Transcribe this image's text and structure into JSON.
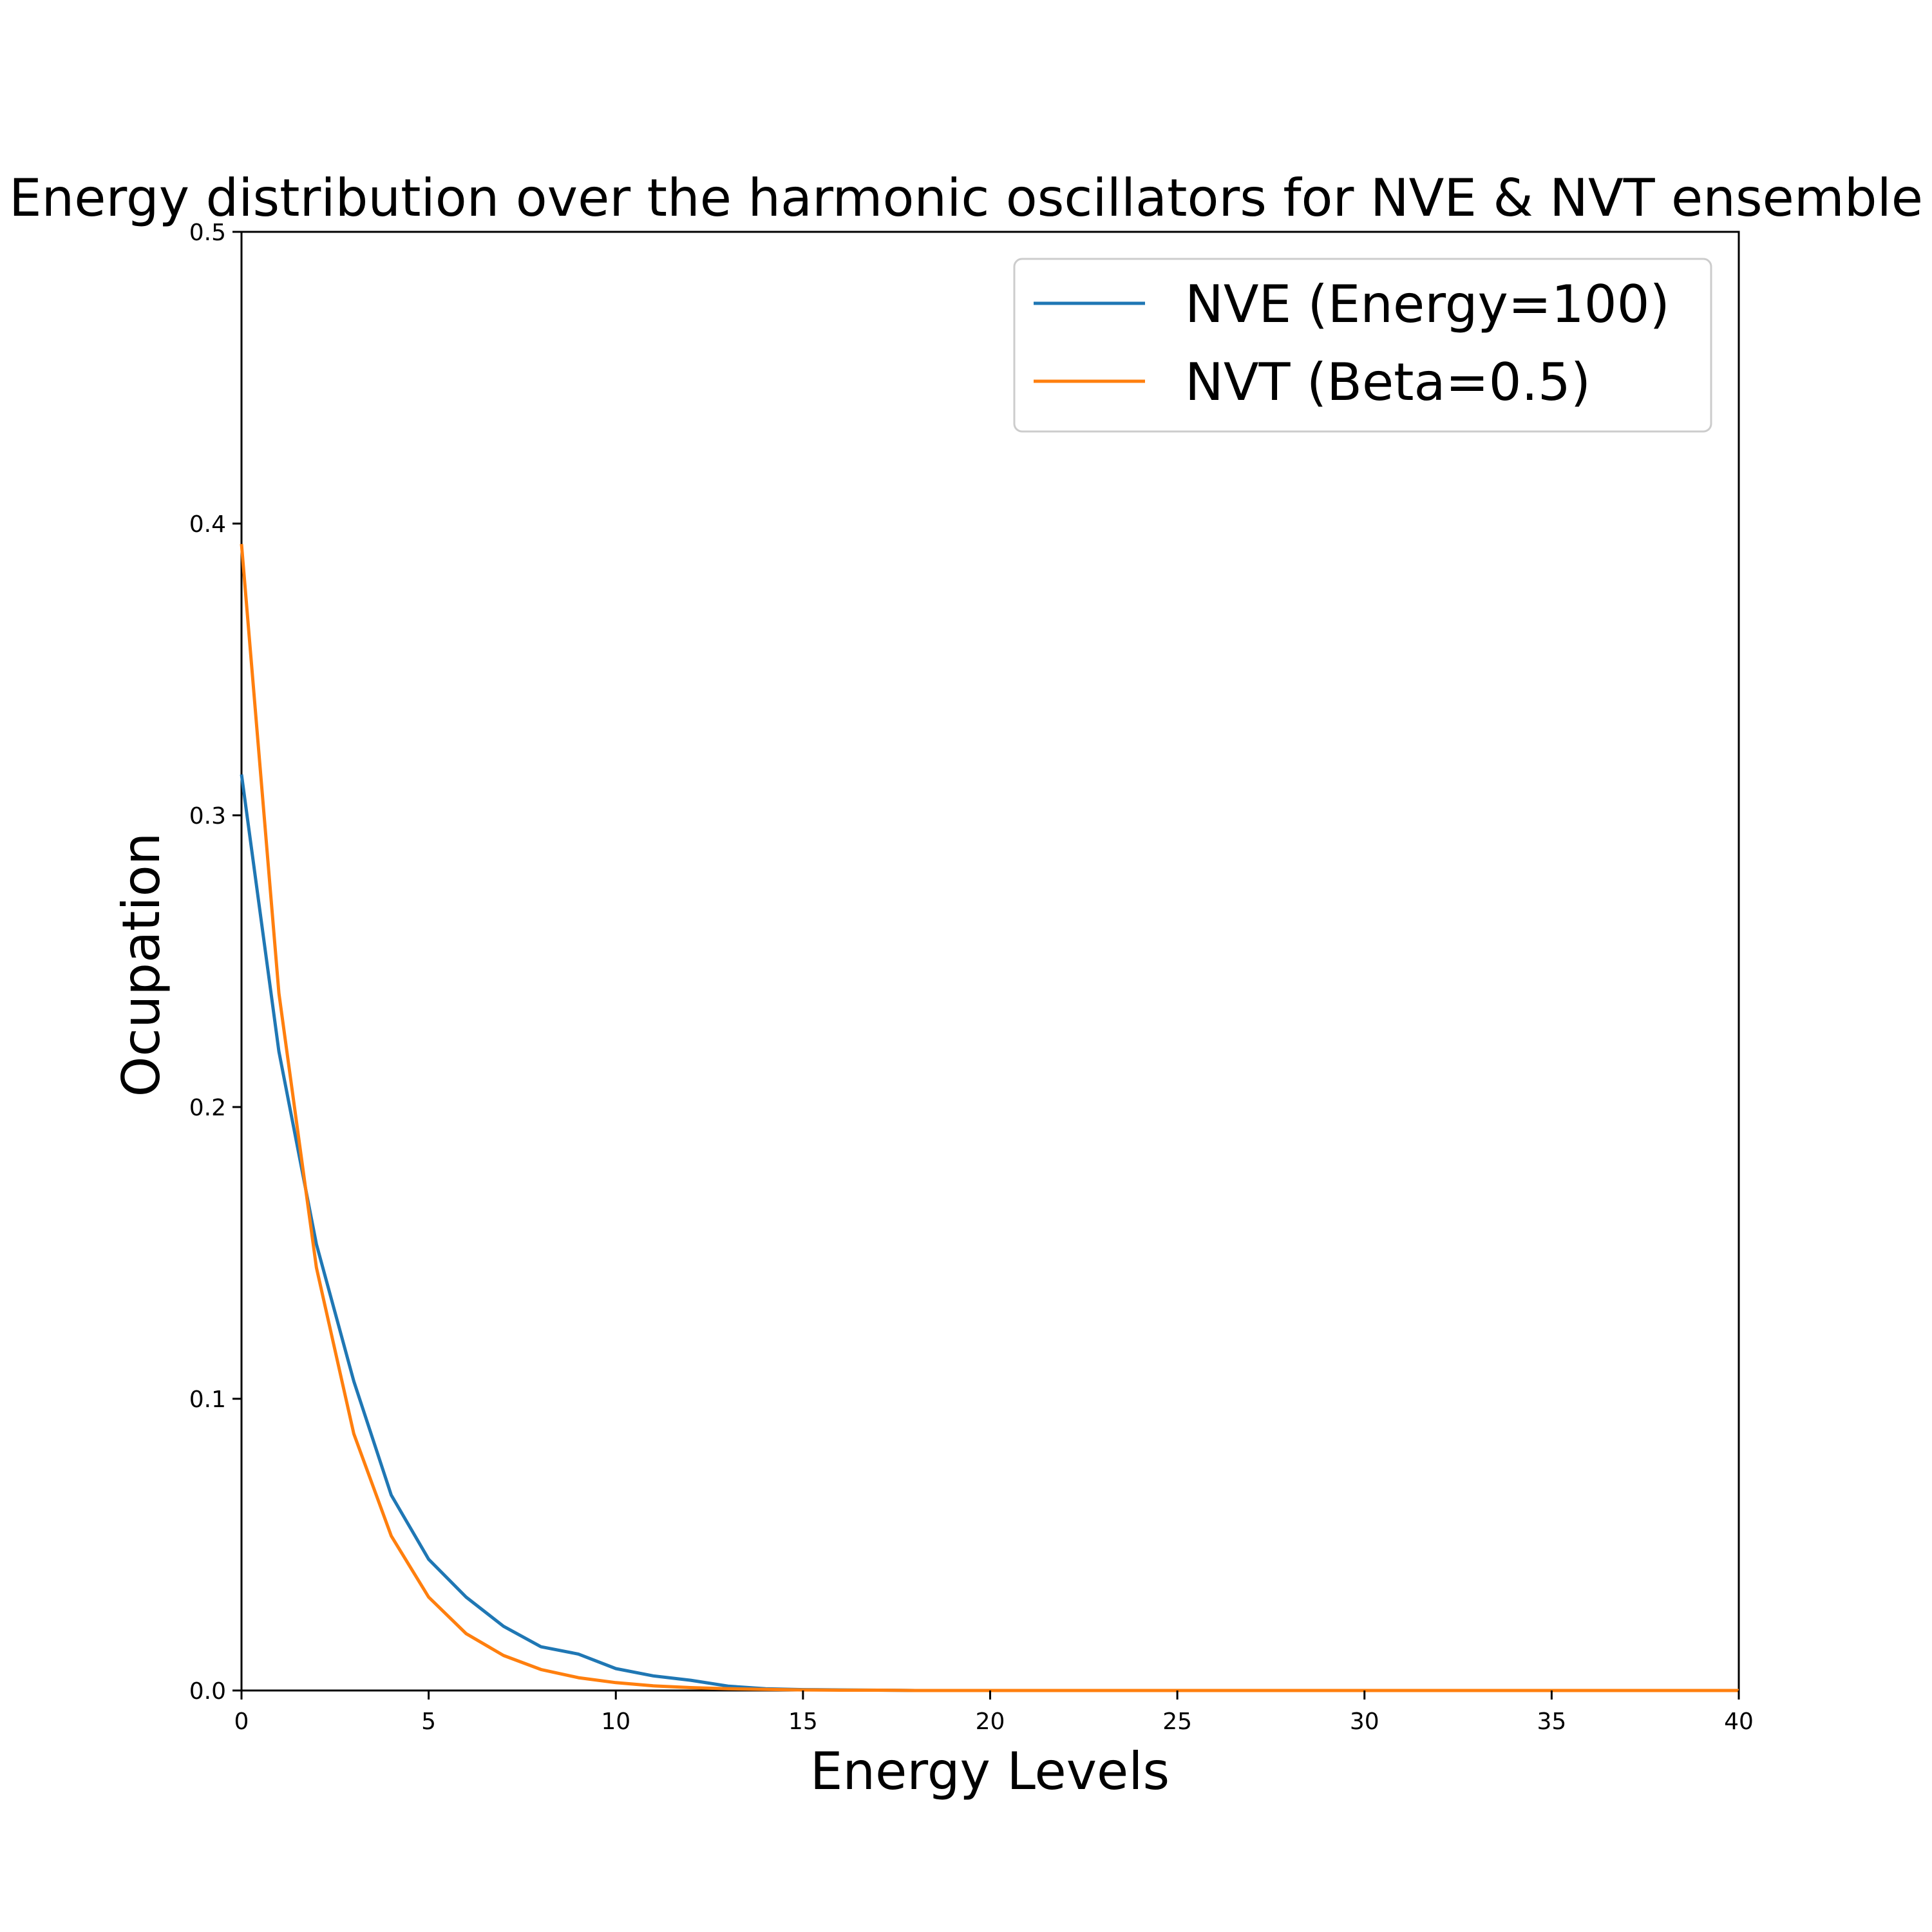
{
  "chart_data": {
    "type": "line",
    "title": "Energy distribution over the harmonic oscillators for NVE & NVT ensemble",
    "xlabel": "Energy Levels",
    "ylabel": "Ocupation",
    "xlim": [
      0,
      40
    ],
    "ylim": [
      0,
      0.5
    ],
    "xticks": [
      "0",
      "5",
      "10",
      "15",
      "20",
      "25",
      "30",
      "35",
      "40"
    ],
    "yticks": [
      "0.0",
      "0.1",
      "0.2",
      "0.3",
      "0.4",
      "0.5"
    ],
    "grid": false,
    "legend_position": "top-right",
    "series": [
      {
        "name": "NVE (Energy=100)",
        "color": "#1f77b4",
        "x": [
          0,
          1,
          2,
          3,
          4,
          5,
          6,
          7,
          8,
          9,
          10,
          11,
          12,
          13,
          14,
          15,
          16,
          17,
          18,
          19,
          20,
          21,
          22,
          23,
          24,
          25,
          26,
          27,
          28,
          29,
          30,
          31,
          32,
          33,
          34,
          35,
          36,
          37,
          38,
          39,
          40
        ],
        "y": [
          0.314,
          0.219,
          0.153,
          0.106,
          0.067,
          0.045,
          0.032,
          0.022,
          0.015,
          0.0125,
          0.0075,
          0.005,
          0.0035,
          0.0015,
          0.0006,
          0.0003,
          0.0002,
          0.0001,
          0,
          0,
          0,
          0,
          0,
          0,
          0,
          0,
          0,
          0,
          0,
          0,
          0,
          0,
          0,
          0,
          0,
          0,
          0,
          0,
          0,
          0,
          0
        ]
      },
      {
        "name": "NVT (Beta=0.5)",
        "color": "#ff7f0e",
        "x": [
          0,
          1,
          2,
          3,
          4,
          5,
          6,
          7,
          8,
          9,
          10,
          11,
          12,
          13,
          14,
          15,
          16,
          17,
          18,
          19,
          20,
          21,
          22,
          23,
          24,
          25,
          26,
          27,
          28,
          29,
          30,
          31,
          32,
          33,
          34,
          35,
          36,
          37,
          38,
          39,
          40
        ],
        "y": [
          0.393,
          0.239,
          0.145,
          0.088,
          0.053,
          0.032,
          0.0195,
          0.012,
          0.0072,
          0.0044,
          0.0027,
          0.0016,
          0.001,
          0.0006,
          0.0004,
          0.0002,
          0.0001,
          0.0001,
          0,
          0,
          0,
          0,
          0,
          0,
          0,
          0,
          0,
          0,
          0,
          0,
          0,
          0,
          0,
          0,
          0,
          0,
          0,
          0,
          0,
          0,
          0
        ]
      }
    ]
  }
}
